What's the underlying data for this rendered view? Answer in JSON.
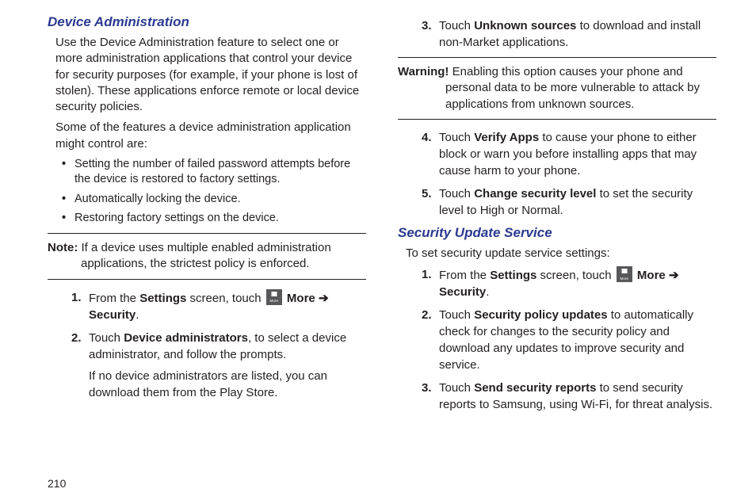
{
  "colors": {
    "heading": "#2b3a8f",
    "body": "#231f20",
    "icon_bg": "#58585a"
  },
  "page_number": "210",
  "sec1": {
    "title": "Device Administration",
    "p1": "Use the Device Administration feature to select one or more administration applications that control your device for security purposes (for example, if your phone is lost of stolen). These applications enforce remote or local device security policies.",
    "p2": "Some of the features a device administration application might control are:",
    "bullets": [
      "Setting the number of failed password attempts before the device is restored to factory settings.",
      "Automatically locking the device.",
      "Restoring factory settings on the device."
    ],
    "note_label": "Note:",
    "note_text": " If a device uses multiple enabled administration applications, the strictest policy is enforced.",
    "steps": {
      "s1a": "From the ",
      "s1_settings": "Settings",
      "s1b": " screen, touch ",
      "s1_more": " More ",
      "s1_arrow": "➔",
      "s1_security": "Security",
      "s1c": ".",
      "s2a": "Touch ",
      "s2_devadmin": "Device administrators",
      "s2b": ", to select a device administrator, and follow the prompts.",
      "s2_sub": "If no device administrators are listed, you can download them from the Play Store.",
      "s3a": "Touch ",
      "s3_unk": "Unknown sources",
      "s3b": " to download and install non‑Market applications.",
      "s4a": "Touch ",
      "s4_verify": "Verify Apps",
      "s4b": " to cause your phone to either block or warn you before installing apps that may cause harm to your phone.",
      "s5a": "Touch ",
      "s5_chg": "Change security level",
      "s5b": " to set the security level to High or Normal."
    },
    "warn_label": "Warning!",
    "warn_text": " Enabling this option causes your phone and personal data to be more vulnerable to attack by applications from unknown sources."
  },
  "sec2": {
    "title": "Security Update Service",
    "p1": "To set security update service settings:",
    "steps": {
      "s1a": "From the ",
      "s1_settings": "Settings",
      "s1b": " screen, touch ",
      "s1_more": " More ",
      "s1_arrow": "➔",
      "s1_security": "Security",
      "s1c": ".",
      "s2a": "Touch ",
      "s2_pol": "Security policy updates",
      "s2b": " to automatically check for changes to the security policy and download any updates to improve security and service.",
      "s3a": "Touch ",
      "s3_rep": "Send security reports",
      "s3b": " to send security reports to Samsung, using Wi‑Fi, for threat analysis."
    }
  }
}
